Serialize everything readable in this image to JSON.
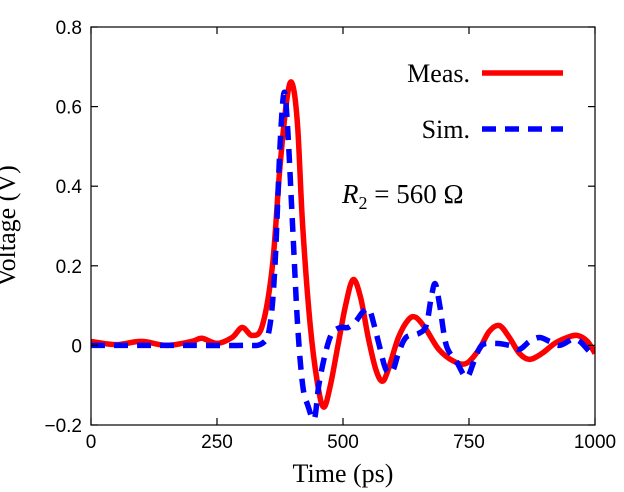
{
  "chart_data": {
    "type": "line",
    "xlabel": "Time (ps)",
    "ylabel": "Voltage (V)",
    "xlim": [
      0,
      1000
    ],
    "ylim": [
      -0.2,
      0.8
    ],
    "x_ticks": [
      0,
      250,
      500,
      750,
      1000
    ],
    "y_ticks": [
      -0.2,
      0,
      0.2,
      0.4,
      0.6,
      0.8
    ],
    "x_tick_labels": [
      "0",
      "250",
      "500",
      "750",
      "1000"
    ],
    "y_tick_labels": [
      "−0.2",
      "0",
      "0.2",
      "0.4",
      "0.6",
      "0.8"
    ],
    "grid": false,
    "legend_position": "top-right",
    "annotation": {
      "variable": "R",
      "subscript": "2",
      "rest": " = 560 Ω"
    },
    "series": [
      {
        "name": "Meas.",
        "color": "#ff0000",
        "style": "solid",
        "points": [
          [
            0,
            0.01
          ],
          [
            50,
            0.002
          ],
          [
            100,
            0.01
          ],
          [
            150,
            0.0
          ],
          [
            200,
            0.01
          ],
          [
            220,
            0.018
          ],
          [
            250,
            0.005
          ],
          [
            280,
            0.02
          ],
          [
            300,
            0.045
          ],
          [
            320,
            0.025
          ],
          [
            340,
            0.05
          ],
          [
            360,
            0.2
          ],
          [
            375,
            0.45
          ],
          [
            390,
            0.63
          ],
          [
            400,
            0.655
          ],
          [
            410,
            0.55
          ],
          [
            420,
            0.3
          ],
          [
            435,
            0.05
          ],
          [
            450,
            -0.1
          ],
          [
            462,
            -0.155
          ],
          [
            475,
            -0.1
          ],
          [
            490,
            0.0
          ],
          [
            505,
            0.1
          ],
          [
            520,
            0.165
          ],
          [
            535,
            0.12
          ],
          [
            550,
            0.02
          ],
          [
            565,
            -0.06
          ],
          [
            578,
            -0.09
          ],
          [
            590,
            -0.06
          ],
          [
            610,
            0.02
          ],
          [
            630,
            0.065
          ],
          [
            645,
            0.07
          ],
          [
            665,
            0.04
          ],
          [
            690,
            -0.01
          ],
          [
            720,
            -0.04
          ],
          [
            745,
            -0.045
          ],
          [
            770,
            -0.01
          ],
          [
            790,
            0.035
          ],
          [
            810,
            0.05
          ],
          [
            830,
            0.02
          ],
          [
            850,
            -0.02
          ],
          [
            870,
            -0.035
          ],
          [
            895,
            -0.02
          ],
          [
            920,
            0.005
          ],
          [
            945,
            0.02
          ],
          [
            965,
            0.025
          ],
          [
            985,
            0.01
          ],
          [
            1000,
            -0.02
          ]
        ]
      },
      {
        "name": "Sim.",
        "color": "#0000ff",
        "style": "dashed",
        "points": [
          [
            0,
            0.0
          ],
          [
            100,
            0.0
          ],
          [
            200,
            0.0
          ],
          [
            300,
            0.0
          ],
          [
            340,
            0.005
          ],
          [
            355,
            0.05
          ],
          [
            365,
            0.2
          ],
          [
            375,
            0.5
          ],
          [
            383,
            0.635
          ],
          [
            390,
            0.55
          ],
          [
            400,
            0.3
          ],
          [
            410,
            0.05
          ],
          [
            420,
            -0.1
          ],
          [
            430,
            -0.15
          ],
          [
            443,
            -0.185
          ],
          [
            452,
            -0.1
          ],
          [
            465,
            -0.02
          ],
          [
            478,
            0.03
          ],
          [
            495,
            0.045
          ],
          [
            510,
            0.045
          ],
          [
            525,
            0.06
          ],
          [
            540,
            0.085
          ],
          [
            552,
            0.09
          ],
          [
            562,
            0.05
          ],
          [
            572,
            0.0
          ],
          [
            585,
            -0.06
          ],
          [
            598,
            -0.065
          ],
          [
            610,
            -0.02
          ],
          [
            625,
            0.02
          ],
          [
            650,
            0.03
          ],
          [
            665,
            0.05
          ],
          [
            675,
            0.12
          ],
          [
            683,
            0.155
          ],
          [
            692,
            0.1
          ],
          [
            705,
            0.0
          ],
          [
            725,
            -0.04
          ],
          [
            745,
            -0.08
          ],
          [
            760,
            -0.04
          ],
          [
            775,
            0.0
          ],
          [
            800,
            0.005
          ],
          [
            830,
            0.0
          ],
          [
            850,
            -0.01
          ],
          [
            870,
            0.01
          ],
          [
            890,
            0.02
          ],
          [
            910,
            0.01
          ],
          [
            930,
            0.0
          ],
          [
            955,
            0.015
          ],
          [
            970,
            0.01
          ],
          [
            985,
            -0.01
          ],
          [
            1000,
            -0.03
          ]
        ]
      }
    ]
  }
}
